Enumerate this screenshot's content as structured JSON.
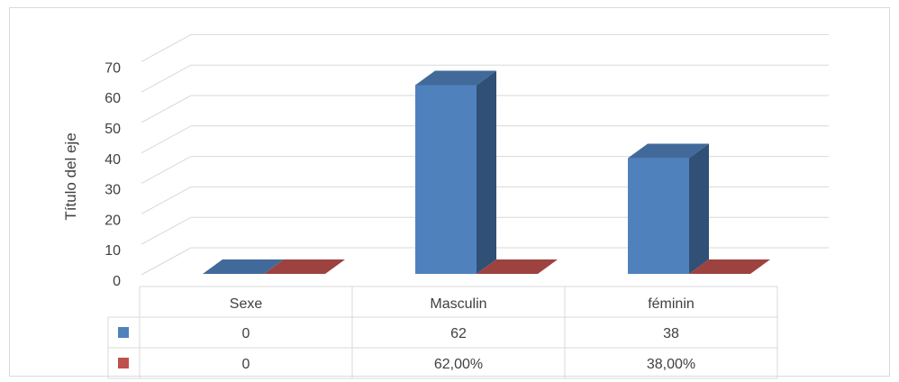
{
  "chart_data": {
    "type": "bar",
    "style": "3d-clustered-column",
    "ylabel": "Título del eje",
    "ylim": [
      0,
      70
    ],
    "yticks": [
      "0",
      "10",
      "20",
      "30",
      "40",
      "50",
      "60",
      "70"
    ],
    "grid": true,
    "categories": [
      "Sexe",
      "Masculin",
      "féminin"
    ],
    "series": [
      {
        "color": "#4f81bd",
        "values": [
          0,
          62,
          38
        ],
        "table_labels": [
          "0",
          "62",
          "38"
        ]
      },
      {
        "color": "#c0504d",
        "values": [
          0,
          62,
          38
        ],
        "table_labels": [
          "0",
          "62,00%",
          "38,00%"
        ]
      }
    ],
    "legend": "data-table"
  }
}
